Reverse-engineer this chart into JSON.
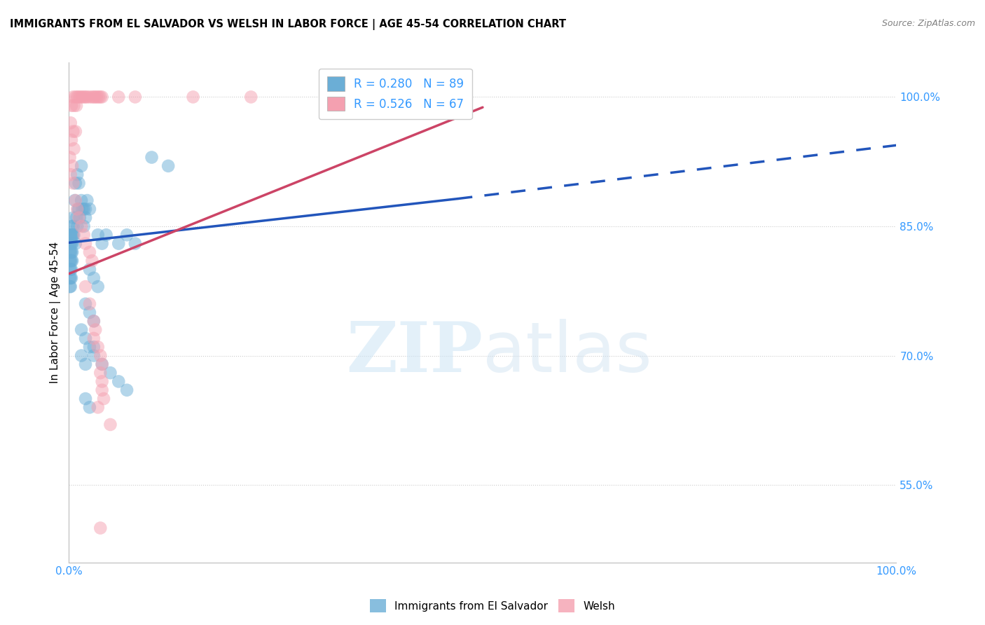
{
  "title": "IMMIGRANTS FROM EL SALVADOR VS WELSH IN LABOR FORCE | AGE 45-54 CORRELATION CHART",
  "source": "Source: ZipAtlas.com",
  "ylabel": "In Labor Force | Age 45-54",
  "xlim": [
    0.0,
    1.0
  ],
  "ylim": [
    0.46,
    1.04
  ],
  "y_ticks": [
    0.55,
    0.7,
    0.85,
    1.0
  ],
  "y_tick_labels": [
    "55.0%",
    "70.0%",
    "85.0%",
    "100.0%"
  ],
  "legend_entries": [
    {
      "label": "Immigrants from El Salvador",
      "color": "#6baed6",
      "R": 0.28,
      "N": 89
    },
    {
      "label": "Welsh",
      "color": "#f4a0b0",
      "R": 0.526,
      "N": 67
    }
  ],
  "blue_scatter": [
    [
      0.005,
      0.84
    ],
    [
      0.01,
      0.85
    ],
    [
      0.012,
      0.87
    ],
    [
      0.015,
      0.88
    ],
    [
      0.018,
      0.87
    ],
    [
      0.02,
      0.86
    ],
    [
      0.022,
      0.88
    ],
    [
      0.025,
      0.87
    ],
    [
      0.008,
      0.9
    ],
    [
      0.01,
      0.91
    ],
    [
      0.012,
      0.9
    ],
    [
      0.015,
      0.92
    ],
    [
      0.005,
      0.86
    ],
    [
      0.007,
      0.88
    ],
    [
      0.009,
      0.86
    ],
    [
      0.011,
      0.87
    ],
    [
      0.013,
      0.86
    ],
    [
      0.016,
      0.87
    ],
    [
      0.018,
      0.85
    ],
    [
      0.02,
      0.87
    ],
    [
      0.003,
      0.84
    ],
    [
      0.004,
      0.83
    ],
    [
      0.006,
      0.84
    ],
    [
      0.008,
      0.83
    ],
    [
      0.001,
      0.84
    ],
    [
      0.002,
      0.83
    ],
    [
      0.003,
      0.85
    ],
    [
      0.004,
      0.84
    ],
    [
      0.001,
      0.83
    ],
    [
      0.002,
      0.84
    ],
    [
      0.003,
      0.83
    ],
    [
      0.005,
      0.85
    ],
    [
      0.001,
      0.82
    ],
    [
      0.002,
      0.82
    ],
    [
      0.003,
      0.82
    ],
    [
      0.004,
      0.82
    ],
    [
      0.001,
      0.81
    ],
    [
      0.002,
      0.81
    ],
    [
      0.003,
      0.81
    ],
    [
      0.004,
      0.81
    ],
    [
      0.001,
      0.8
    ],
    [
      0.002,
      0.8
    ],
    [
      0.003,
      0.8
    ],
    [
      0.001,
      0.79
    ],
    [
      0.002,
      0.79
    ],
    [
      0.003,
      0.79
    ],
    [
      0.001,
      0.78
    ],
    [
      0.002,
      0.78
    ],
    [
      0.035,
      0.84
    ],
    [
      0.04,
      0.83
    ],
    [
      0.045,
      0.84
    ],
    [
      0.06,
      0.83
    ],
    [
      0.07,
      0.84
    ],
    [
      0.08,
      0.83
    ],
    [
      0.025,
      0.8
    ],
    [
      0.03,
      0.79
    ],
    [
      0.035,
      0.78
    ],
    [
      0.02,
      0.76
    ],
    [
      0.025,
      0.75
    ],
    [
      0.03,
      0.74
    ],
    [
      0.015,
      0.73
    ],
    [
      0.02,
      0.72
    ],
    [
      0.025,
      0.71
    ],
    [
      0.03,
      0.71
    ],
    [
      0.03,
      0.7
    ],
    [
      0.04,
      0.69
    ],
    [
      0.05,
      0.68
    ],
    [
      0.015,
      0.7
    ],
    [
      0.02,
      0.69
    ],
    [
      0.1,
      0.93
    ],
    [
      0.12,
      0.92
    ],
    [
      0.06,
      0.67
    ],
    [
      0.07,
      0.66
    ],
    [
      0.02,
      0.65
    ],
    [
      0.025,
      0.64
    ]
  ],
  "pink_scatter": [
    [
      0.005,
      1.0
    ],
    [
      0.008,
      1.0
    ],
    [
      0.01,
      1.0
    ],
    [
      0.012,
      1.0
    ],
    [
      0.014,
      1.0
    ],
    [
      0.016,
      1.0
    ],
    [
      0.018,
      1.0
    ],
    [
      0.02,
      1.0
    ],
    [
      0.022,
      1.0
    ],
    [
      0.025,
      1.0
    ],
    [
      0.028,
      1.0
    ],
    [
      0.03,
      1.0
    ],
    [
      0.032,
      1.0
    ],
    [
      0.034,
      1.0
    ],
    [
      0.036,
      1.0
    ],
    [
      0.038,
      1.0
    ],
    [
      0.04,
      1.0
    ],
    [
      0.06,
      1.0
    ],
    [
      0.08,
      1.0
    ],
    [
      0.15,
      1.0
    ],
    [
      0.22,
      1.0
    ],
    [
      0.003,
      0.99
    ],
    [
      0.006,
      0.99
    ],
    [
      0.009,
      0.99
    ],
    [
      0.002,
      0.97
    ],
    [
      0.005,
      0.96
    ],
    [
      0.008,
      0.96
    ],
    [
      0.003,
      0.95
    ],
    [
      0.006,
      0.94
    ],
    [
      0.001,
      0.93
    ],
    [
      0.004,
      0.92
    ],
    [
      0.002,
      0.91
    ],
    [
      0.005,
      0.9
    ],
    [
      0.008,
      0.88
    ],
    [
      0.01,
      0.87
    ],
    [
      0.012,
      0.86
    ],
    [
      0.015,
      0.85
    ],
    [
      0.018,
      0.84
    ],
    [
      0.02,
      0.83
    ],
    [
      0.025,
      0.82
    ],
    [
      0.028,
      0.81
    ],
    [
      0.02,
      0.78
    ],
    [
      0.025,
      0.76
    ],
    [
      0.03,
      0.74
    ],
    [
      0.032,
      0.73
    ],
    [
      0.03,
      0.72
    ],
    [
      0.035,
      0.71
    ],
    [
      0.038,
      0.7
    ],
    [
      0.04,
      0.69
    ],
    [
      0.038,
      0.68
    ],
    [
      0.04,
      0.67
    ],
    [
      0.04,
      0.66
    ],
    [
      0.042,
      0.65
    ],
    [
      0.035,
      0.64
    ],
    [
      0.05,
      0.62
    ],
    [
      0.038,
      0.5
    ]
  ],
  "blue_line_solid": [
    [
      0.0,
      0.831
    ],
    [
      0.47,
      0.882
    ]
  ],
  "blue_line_dashed": [
    [
      0.47,
      0.882
    ],
    [
      1.0,
      0.944
    ]
  ],
  "pink_line_solid": [
    [
      0.0,
      0.795
    ],
    [
      0.5,
      0.988
    ]
  ],
  "dot_color_blue": "#6baed6",
  "dot_color_pink": "#f4a0b0",
  "line_color_blue": "#2255bb",
  "line_color_pink": "#cc4466",
  "background_color": "#ffffff",
  "grid_color": "#cccccc"
}
